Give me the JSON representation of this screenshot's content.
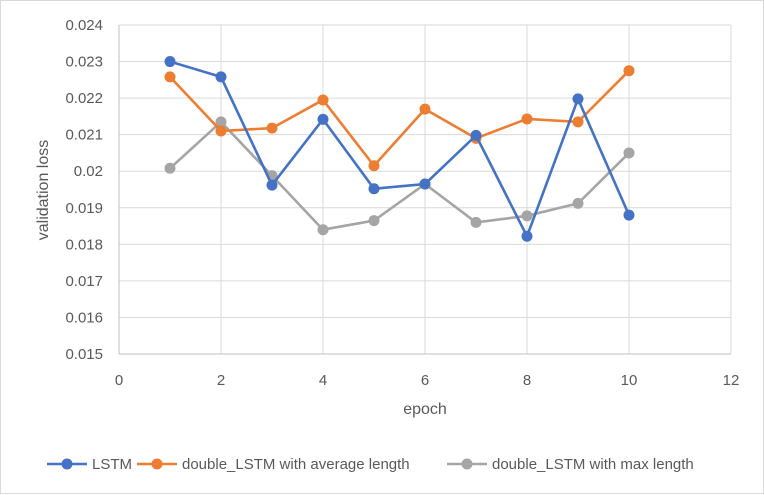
{
  "chart_data": {
    "type": "line",
    "title": "",
    "xlabel": "epoch",
    "ylabel": "validation loss",
    "xlim": [
      0,
      12
    ],
    "ylim": [
      0.015,
      0.024
    ],
    "x_ticks": [
      "0",
      "2",
      "4",
      "6",
      "8",
      "10",
      "12"
    ],
    "y_ticks": [
      "0.015",
      "0.016",
      "0.017",
      "0.018",
      "0.019",
      "0.02",
      "0.021",
      "0.022",
      "0.023",
      "0.024"
    ],
    "grid": true,
    "legend_position": "bottom",
    "x": [
      1,
      2,
      3,
      4,
      5,
      6,
      7,
      8,
      9,
      10
    ],
    "series": [
      {
        "name": "LSTM",
        "color": "#4472c4",
        "values": [
          0.023,
          0.02258,
          0.01962,
          0.02142,
          0.01952,
          0.01965,
          0.02098,
          0.01822,
          0.02198,
          0.0188
        ]
      },
      {
        "name": "double_LSTM with average length",
        "color": "#ed7d31",
        "values": [
          0.02258,
          0.0211,
          0.02118,
          0.02195,
          0.02015,
          0.0217,
          0.0209,
          0.02143,
          0.02135,
          0.02275
        ]
      },
      {
        "name": "double_LSTM with max length",
        "color": "#a5a5a5",
        "values": [
          0.02008,
          0.02135,
          0.01988,
          0.0184,
          0.01865,
          0.01965,
          0.0186,
          0.01878,
          0.01912,
          0.0205
        ]
      }
    ]
  }
}
